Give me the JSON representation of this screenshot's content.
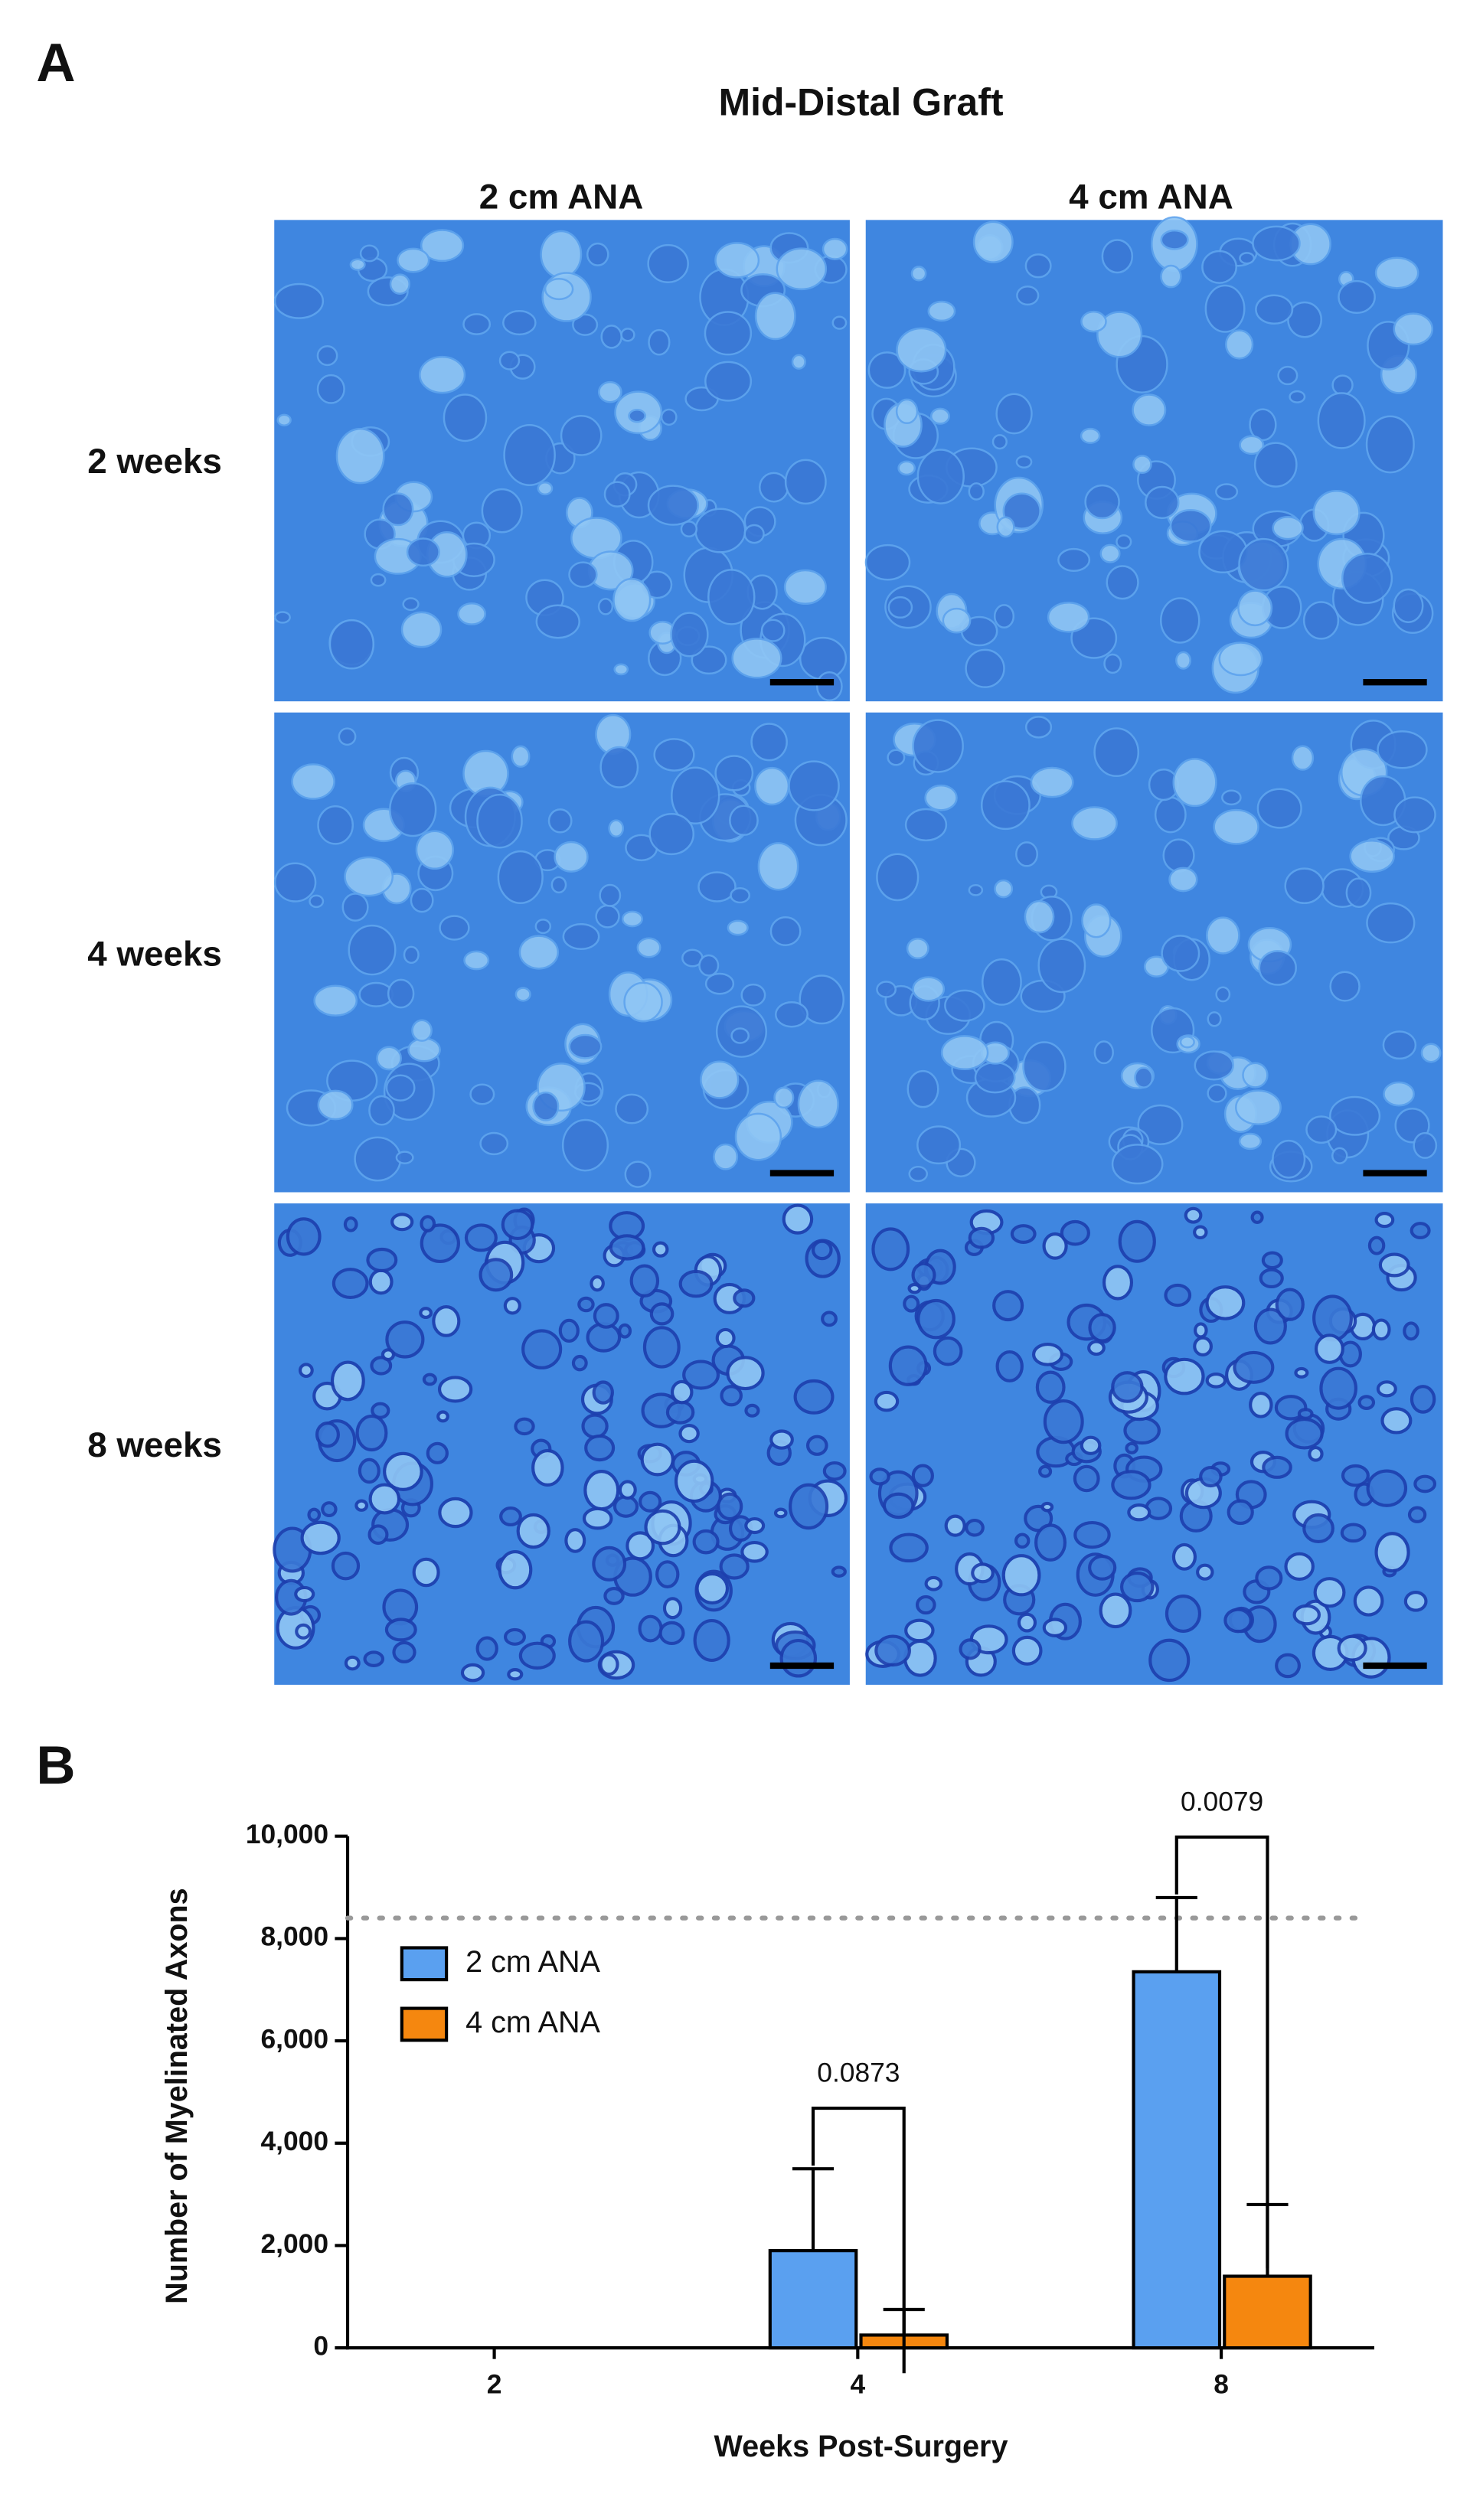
{
  "panel_a": {
    "label": "A",
    "title": "Mid-Distal Graft",
    "columns": [
      "2 cm ANA",
      "4 cm ANA"
    ],
    "rows": [
      "2 weeks",
      "4 weeks",
      "8 weeks"
    ]
  },
  "panel_b": {
    "label": "B"
  },
  "chart_data": {
    "type": "bar",
    "x_label": "Weeks Post-Surgery",
    "y_label": "Number of Myelinated Axons",
    "categories": [
      "2",
      "4",
      "8"
    ],
    "series": [
      {
        "name": "2 cm ANA",
        "color": "#5aa0f0",
        "values": [
          0,
          1900,
          7350
        ],
        "errors": [
          0,
          1600,
          1450
        ]
      },
      {
        "name": "4 cm ANA",
        "color": "#f5870f",
        "values": [
          0,
          250,
          1400
        ],
        "errors": [
          0,
          500,
          1400
        ]
      }
    ],
    "ylim": [
      0,
      10000
    ],
    "yticks": [
      0,
      {
        "value": 2000,
        "label": "2,000"
      },
      {
        "value": 4000,
        "label": "4,000"
      },
      {
        "value": 6000,
        "label": "6,000"
      },
      {
        "value": 8000,
        "label": "8,000"
      },
      {
        "value": 10000,
        "label": "10,000"
      }
    ],
    "reference_line": 8400,
    "annotations": [
      "0.0873",
      "0.0079"
    ],
    "legend": "upper left"
  }
}
